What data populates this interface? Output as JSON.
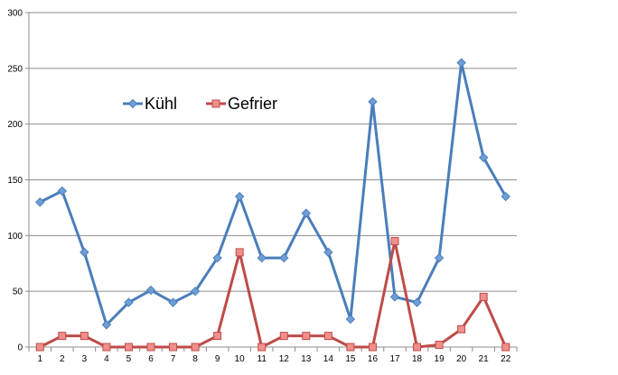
{
  "chart_data": {
    "type": "line",
    "title": "",
    "xlabel": "",
    "ylabel": "",
    "x": [
      1,
      2,
      3,
      4,
      5,
      6,
      7,
      8,
      9,
      10,
      11,
      12,
      13,
      14,
      15,
      16,
      17,
      18,
      19,
      20,
      21,
      22
    ],
    "ylim": [
      0,
      300
    ],
    "yticks": [
      0,
      50,
      100,
      150,
      200,
      250,
      300
    ],
    "grid": "horizontal",
    "legend_position": "upper-left",
    "series": [
      {
        "name": "Kühl",
        "color": "#4a7ebb",
        "fill": "#6f9fd8",
        "marker": "diamond",
        "values": [
          130,
          140,
          85,
          20,
          40,
          51,
          40,
          50,
          80,
          135,
          80,
          80,
          120,
          85,
          25,
          220,
          45,
          40,
          80,
          255,
          170,
          135
        ]
      },
      {
        "name": "Gefrier",
        "color": "#be4b48",
        "fill": "#f08f8c",
        "marker": "square",
        "values": [
          0,
          10,
          10,
          0,
          0,
          0,
          0,
          0,
          10,
          85,
          0,
          10,
          10,
          10,
          0,
          0,
          95,
          0,
          2,
          16,
          45,
          0
        ]
      }
    ]
  }
}
